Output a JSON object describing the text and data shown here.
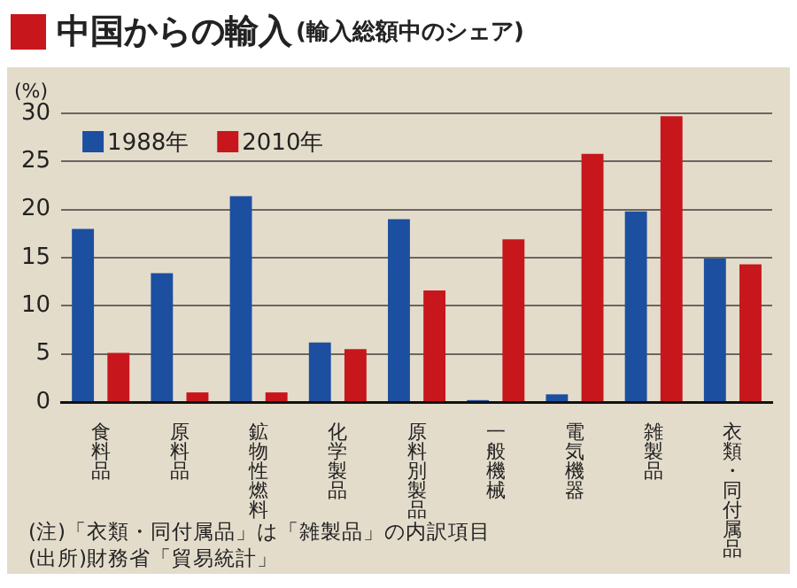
{
  "chart_data": {
    "type": "bar",
    "title": "中国からの輸入",
    "subtitle": "(輸入総額中のシェア)",
    "ylabel": "(%)",
    "categories": [
      "食料品",
      "原料品",
      "鉱物性燃料",
      "化学製品",
      "原料別製品",
      "一般機械",
      "電気機器",
      "雑製品",
      "衣類・同付属品"
    ],
    "series": [
      {
        "name": "1988年",
        "color": "#1c4fa0",
        "values": [
          18.0,
          13.4,
          21.4,
          6.2,
          19.0,
          0.2,
          0.8,
          19.8,
          14.9
        ]
      },
      {
        "name": "2010年",
        "color": "#c8161d",
        "values": [
          5.1,
          1.0,
          1.0,
          5.5,
          11.6,
          16.9,
          25.8,
          29.7,
          14.3
        ]
      }
    ],
    "ylim": [
      0,
      30
    ],
    "yticks": [
      0,
      5,
      10,
      15,
      20,
      25,
      30
    ],
    "grid": "y",
    "legend": "top left",
    "annotations": [
      "(注)「衣類・同付属品」は「雑製品」の内訳項目",
      "(出所)財務省「貿易統計」"
    ]
  }
}
